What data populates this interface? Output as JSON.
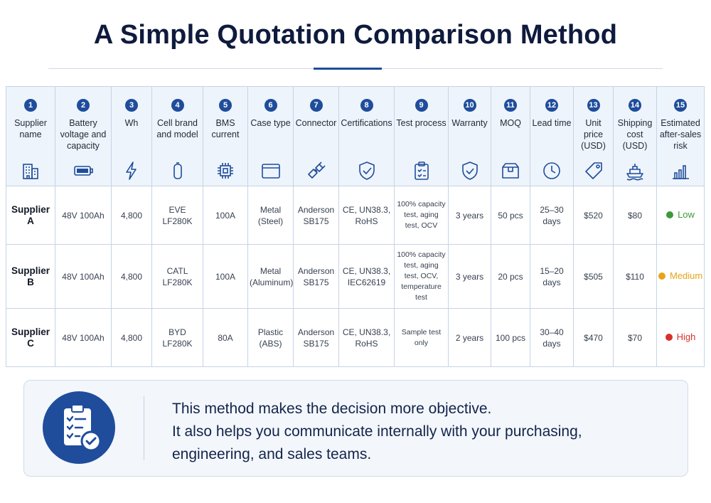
{
  "title": "A Simple Quotation Comparison Method",
  "table": {
    "columns": [
      {
        "number": "1",
        "label": "Supplier name",
        "icon": "building-icon"
      },
      {
        "number": "2",
        "label": "Battery voltage and capacity",
        "icon": "battery-icon"
      },
      {
        "number": "3",
        "label": "Wh",
        "icon": "lightning-icon"
      },
      {
        "number": "4",
        "label": "Cell brand and model",
        "icon": "cell-icon"
      },
      {
        "number": "5",
        "label": "BMS current",
        "icon": "chip-icon"
      },
      {
        "number": "6",
        "label": "Case type",
        "icon": "case-icon"
      },
      {
        "number": "7",
        "label": "Connector",
        "icon": "connector-icon"
      },
      {
        "number": "8",
        "label": "Certifications",
        "icon": "shield-check-icon"
      },
      {
        "number": "9",
        "label": "Test process",
        "icon": "clipboard-icon"
      },
      {
        "number": "10",
        "label": "Warranty",
        "icon": "warranty-shield-icon"
      },
      {
        "number": "11",
        "label": "MOQ",
        "icon": "box-icon"
      },
      {
        "number": "12",
        "label": "Lead time",
        "icon": "clock-icon"
      },
      {
        "number": "13",
        "label": "Unit price (USD)",
        "icon": "price-tag-icon"
      },
      {
        "number": "14",
        "label": "Shipping cost (USD)",
        "icon": "ship-icon"
      },
      {
        "number": "15",
        "label": "Estimated after-sales risk",
        "icon": "bar-chart-icon"
      }
    ],
    "rows": [
      {
        "supplier": "Supplier A",
        "voltage_capacity": "48V 100Ah",
        "wh": "4,800",
        "cell": "EVE LF280K",
        "bms": "100A",
        "case": "Metal (Steel)",
        "connector": "Anderson SB175",
        "certifications": "CE, UN38.3, RoHS",
        "test": "100% capacity test, aging test, OCV",
        "warranty": "3 years",
        "moq": "50 pcs",
        "lead_time": "25–30 days",
        "unit_price": "$520",
        "shipping": "$80",
        "risk": "Low",
        "risk_color": "#3a9a3a"
      },
      {
        "supplier": "Supplier B",
        "voltage_capacity": "48V 100Ah",
        "wh": "4,800",
        "cell": "CATL LF280K",
        "bms": "100A",
        "case": "Metal (Aluminum)",
        "connector": "Anderson SB175",
        "certifications": "CE, UN38.3, IEC62619",
        "test": "100% capacity test, aging test, OCV, temperature test",
        "warranty": "3 years",
        "moq": "20 pcs",
        "lead_time": "15–20 days",
        "unit_price": "$505",
        "shipping": "$110",
        "risk": "Medium",
        "risk_color": "#e8a317"
      },
      {
        "supplier": "Supplier C",
        "voltage_capacity": "48V 100Ah",
        "wh": "4,800",
        "cell": "BYD LF280K",
        "bms": "80A",
        "case": "Plastic (ABS)",
        "connector": "Anderson SB175",
        "certifications": "CE, UN38.3, RoHS",
        "test": "Sample test only",
        "warranty": "2 years",
        "moq": "100 pcs",
        "lead_time": "30–40 days",
        "unit_price": "$470",
        "shipping": "$70",
        "risk": "High",
        "risk_color": "#d9302c"
      }
    ]
  },
  "note": {
    "icon": "checklist-icon",
    "line1": "This method makes the decision more objective.",
    "line2": "It also helps you communicate internally with your purchasing,",
    "line3": "engineering, and sales teams."
  },
  "colors": {
    "accent": "#1f4d9c",
    "header_bg": "#eef4fb",
    "title": "#0f1b3d"
  }
}
